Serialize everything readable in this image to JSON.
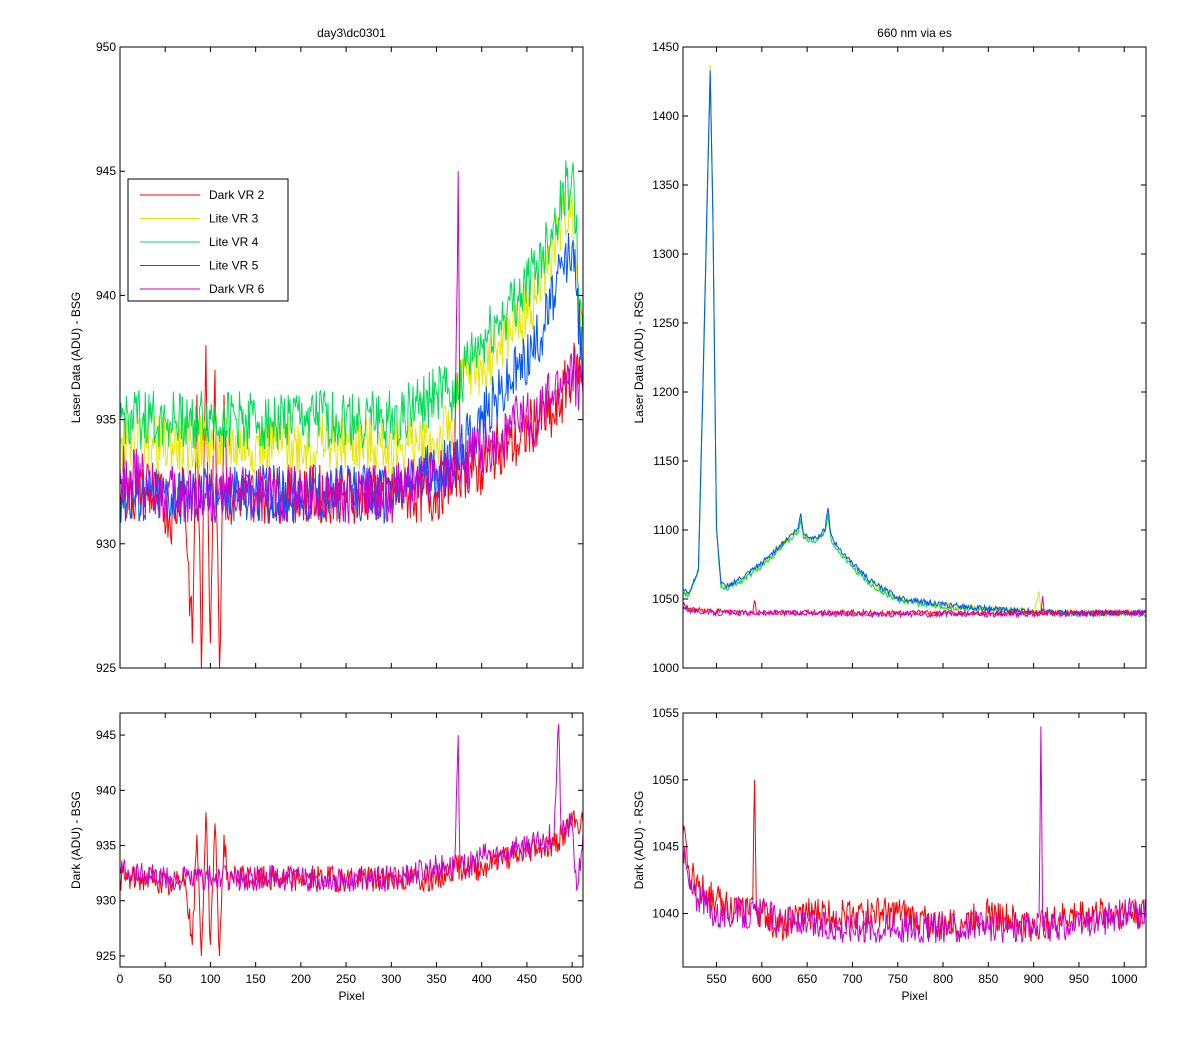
{
  "figure": {
    "width": 1200,
    "height": 1050
  },
  "chart_data": [
    {
      "panel": "top-left",
      "type": "line",
      "title": "day3\\dc0301",
      "xlabel": "",
      "ylabel": "Laser Data (ADU) - BSG",
      "xlim": [
        0,
        512
      ],
      "ylim": [
        925,
        950
      ],
      "yticks": [
        925,
        930,
        935,
        940,
        945,
        950
      ],
      "xticks": [
        0,
        50,
        100,
        150,
        200,
        250,
        300,
        350,
        400,
        450,
        500
      ],
      "show_xtick_labels": false,
      "legend": {
        "position": "upper-left"
      },
      "series": [
        {
          "name": "Dark VR 2",
          "color": "#ff0000",
          "x": [
            0,
            20,
            40,
            60,
            70,
            80,
            85,
            90,
            95,
            100,
            105,
            110,
            115,
            120,
            125,
            130,
            150,
            200,
            250,
            300,
            350,
            370,
            380,
            400,
            420,
            440,
            460,
            480,
            500,
            512
          ],
          "y": [
            932,
            932,
            932,
            931,
            933,
            926,
            936,
            925,
            938,
            926,
            937,
            925,
            936,
            931,
            932,
            932,
            932,
            932,
            932,
            932,
            932,
            933,
            933,
            933,
            934,
            934,
            935,
            935,
            937,
            937
          ]
        },
        {
          "name": "Lite VR 3",
          "color": "#e6e600",
          "x": [
            0,
            50,
            100,
            150,
            200,
            250,
            300,
            350,
            370,
            380,
            400,
            420,
            440,
            460,
            480,
            500,
            512
          ],
          "y": [
            934,
            934,
            934,
            934,
            934,
            934,
            934,
            934,
            935,
            937,
            937,
            938,
            939,
            940,
            942,
            944,
            937
          ]
        },
        {
          "name": "Lite VR 4",
          "color": "#00dd55",
          "x": [
            0,
            50,
            100,
            150,
            200,
            250,
            300,
            350,
            370,
            380,
            400,
            420,
            440,
            460,
            480,
            500,
            512
          ],
          "y": [
            935,
            935,
            935,
            935,
            935,
            935,
            935,
            936,
            936,
            937,
            938,
            939,
            940,
            941,
            943,
            945,
            938
          ]
        },
        {
          "name": "Lite VR 5",
          "color": "#0055ff",
          "x": [
            0,
            50,
            100,
            150,
            200,
            250,
            300,
            350,
            370,
            380,
            400,
            420,
            440,
            460,
            480,
            500,
            512
          ],
          "y": [
            932,
            932,
            932,
            932,
            932,
            932,
            932,
            933,
            933,
            934,
            935,
            936,
            937,
            938,
            940,
            942,
            937
          ]
        },
        {
          "name": "Dark VR 6",
          "color": "#cc00cc",
          "x": [
            0,
            50,
            100,
            150,
            200,
            250,
            300,
            350,
            370,
            374,
            376,
            380,
            400,
            420,
            440,
            460,
            480,
            500,
            512
          ],
          "y": [
            933,
            932,
            932,
            932,
            932,
            932,
            932,
            933,
            933,
            945,
            933,
            933,
            934,
            934,
            935,
            935,
            936,
            937,
            936
          ]
        }
      ]
    },
    {
      "panel": "top-right",
      "type": "line",
      "title": "660 nm via es",
      "xlabel": "",
      "ylabel": "Laser Data (ADU) - RSG",
      "xlim": [
        513,
        1024
      ],
      "ylim": [
        1000,
        1450
      ],
      "yticks": [
        1000,
        1050,
        1100,
        1150,
        1200,
        1250,
        1300,
        1350,
        1400,
        1450
      ],
      "xticks": [
        550,
        600,
        650,
        700,
        750,
        800,
        850,
        900,
        950,
        1000
      ],
      "show_xtick_labels": false,
      "series": [
        {
          "name": "Lite VR 3",
          "color": "#e6e600",
          "x": [
            513,
            520,
            530,
            535,
            540,
            543,
            546,
            550,
            555,
            560,
            580,
            600,
            620,
            640,
            643,
            646,
            650,
            660,
            670,
            673,
            676,
            680,
            700,
            720,
            750,
            800,
            850,
            900,
            906,
            908,
            910,
            950,
            1000,
            1024
          ],
          "y": [
            1055,
            1054,
            1070,
            1200,
            1350,
            1437,
            1330,
            1100,
            1060,
            1058,
            1065,
            1075,
            1088,
            1100,
            1110,
            1096,
            1095,
            1093,
            1100,
            1115,
            1097,
            1090,
            1075,
            1062,
            1050,
            1045,
            1043,
            1041,
            1055,
            1041,
            1040,
            1040,
            1040,
            1040
          ]
        },
        {
          "name": "Lite VR 4",
          "color": "#00dd55",
          "x": [
            513,
            520,
            530,
            535,
            540,
            543,
            546,
            550,
            555,
            560,
            580,
            600,
            620,
            640,
            643,
            646,
            650,
            660,
            670,
            673,
            676,
            680,
            700,
            720,
            750,
            800,
            850,
            900,
            950,
            1000,
            1024
          ],
          "y": [
            1054,
            1053,
            1070,
            1200,
            1345,
            1430,
            1325,
            1100,
            1058,
            1057,
            1064,
            1074,
            1087,
            1098,
            1108,
            1094,
            1093,
            1092,
            1099,
            1112,
            1095,
            1088,
            1073,
            1060,
            1049,
            1044,
            1042,
            1040,
            1039,
            1039,
            1039
          ]
        },
        {
          "name": "Lite VR 5",
          "color": "#0055ff",
          "x": [
            513,
            520,
            530,
            535,
            540,
            543,
            546,
            550,
            555,
            560,
            580,
            600,
            620,
            640,
            643,
            646,
            650,
            660,
            670,
            673,
            676,
            680,
            700,
            720,
            750,
            800,
            850,
            900,
            950,
            1000,
            1024
          ],
          "y": [
            1056,
            1055,
            1072,
            1205,
            1352,
            1433,
            1328,
            1102,
            1061,
            1059,
            1066,
            1076,
            1089,
            1101,
            1112,
            1097,
            1096,
            1094,
            1101,
            1116,
            1098,
            1091,
            1076,
            1063,
            1051,
            1046,
            1043,
            1041,
            1040,
            1040,
            1040
          ]
        },
        {
          "name": "Dark VR 2",
          "color": "#ff0000",
          "x": [
            513,
            520,
            530,
            550,
            580,
            590,
            592,
            594,
            600,
            650,
            700,
            750,
            800,
            850,
            900,
            950,
            1000,
            1024
          ],
          "y": [
            1046,
            1043,
            1042,
            1041,
            1040,
            1040,
            1049,
            1040,
            1040,
            1040,
            1040,
            1040,
            1040,
            1040,
            1040,
            1040,
            1040,
            1040
          ]
        },
        {
          "name": "Dark VR 6",
          "color": "#cc00cc",
          "x": [
            513,
            520,
            530,
            550,
            600,
            650,
            700,
            750,
            800,
            850,
            900,
            908,
            910,
            912,
            950,
            1000,
            1024
          ],
          "y": [
            1045,
            1042,
            1041,
            1040,
            1040,
            1040,
            1039,
            1039,
            1039,
            1039,
            1039,
            1039,
            1052,
            1039,
            1039,
            1040,
            1040
          ]
        }
      ]
    },
    {
      "panel": "bottom-left",
      "type": "line",
      "title": "",
      "xlabel": "Pixel",
      "ylabel": "Dark (ADU) - BSG",
      "xlim": [
        0,
        512
      ],
      "ylim": [
        924,
        947
      ],
      "yticks": [
        925,
        930,
        935,
        940,
        945
      ],
      "xticks": [
        0,
        50,
        100,
        150,
        200,
        250,
        300,
        350,
        400,
        450,
        500
      ],
      "show_xtick_labels": true,
      "series": [
        {
          "name": "Dark VR 2",
          "color": "#ff0000",
          "x": [
            0,
            20,
            40,
            60,
            70,
            80,
            85,
            90,
            95,
            100,
            105,
            110,
            115,
            120,
            125,
            130,
            150,
            200,
            250,
            300,
            350,
            370,
            380,
            400,
            420,
            440,
            460,
            480,
            500,
            512
          ],
          "y": [
            932,
            932,
            932,
            931,
            933,
            926,
            936,
            925,
            938,
            926,
            937,
            925,
            936,
            931,
            932,
            932,
            932,
            932,
            932,
            932,
            932,
            933,
            933,
            933,
            934,
            934,
            935,
            935,
            937,
            937
          ]
        },
        {
          "name": "Dark VR 6",
          "color": "#cc00cc",
          "x": [
            0,
            50,
            100,
            150,
            200,
            250,
            300,
            350,
            370,
            374,
            376,
            380,
            400,
            420,
            440,
            460,
            480,
            485,
            488,
            500,
            505,
            512
          ],
          "y": [
            933,
            932,
            932,
            932,
            932,
            932,
            932,
            933,
            933,
            945,
            933,
            933,
            934,
            934,
            935,
            935,
            936,
            946,
            936,
            937,
            931,
            936
          ]
        }
      ]
    },
    {
      "panel": "bottom-right",
      "type": "line",
      "title": "",
      "xlabel": "Pixel",
      "ylabel": "Dark (ADU) - RSG",
      "xlim": [
        513,
        1024
      ],
      "ylim": [
        1036,
        1055
      ],
      "yticks": [
        1040,
        1045,
        1050,
        1055
      ],
      "xticks": [
        550,
        600,
        650,
        700,
        750,
        800,
        850,
        900,
        950,
        1000
      ],
      "show_xtick_labels": true,
      "series": [
        {
          "name": "Dark VR 2",
          "color": "#ff0000",
          "x": [
            513,
            520,
            530,
            550,
            580,
            590,
            592,
            594,
            600,
            620,
            650,
            700,
            750,
            800,
            850,
            900,
            950,
            1000,
            1024
          ],
          "y": [
            1046,
            1043,
            1042,
            1041,
            1040,
            1041,
            1050,
            1040,
            1040,
            1039,
            1040,
            1040,
            1040,
            1039,
            1040,
            1039,
            1040,
            1040,
            1040
          ]
        },
        {
          "name": "Dark VR 6",
          "color": "#cc00cc",
          "x": [
            513,
            520,
            530,
            550,
            600,
            650,
            700,
            750,
            800,
            850,
            900,
            906,
            908,
            910,
            950,
            1000,
            1024
          ],
          "y": [
            1045,
            1042,
            1041,
            1040,
            1040,
            1039,
            1039,
            1039,
            1039,
            1039,
            1039,
            1040,
            1054,
            1039,
            1039,
            1040,
            1040
          ]
        }
      ]
    }
  ]
}
